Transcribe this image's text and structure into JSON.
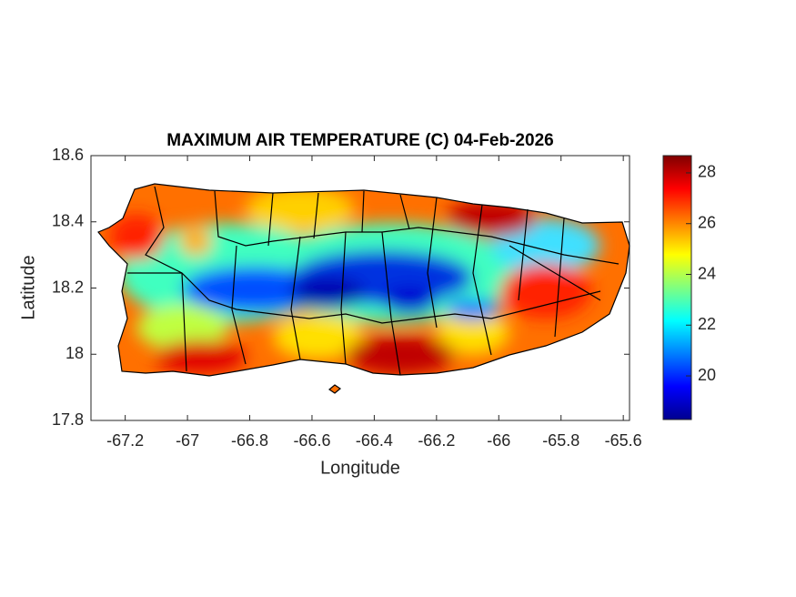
{
  "chart_data": {
    "type": "heatmap",
    "title": "MAXIMUM AIR TEMPERATURE (C) 04-Feb-2026",
    "x_label": "Longitude",
    "y_label": "Latitude",
    "xlim": [
      -67.31,
      -65.58
    ],
    "xticks": [
      -67.2,
      -67,
      -66.8,
      -66.6,
      -66.4,
      -66.2,
      -66,
      -65.8,
      -65.6
    ],
    "ylim": [
      17.8,
      18.6
    ],
    "yticks": [
      17.8,
      18,
      18.2,
      18.4,
      18.6
    ],
    "colorbar": {
      "lim": [
        18.28,
        28.68
      ],
      "ticks": [
        20,
        22,
        24,
        26,
        28
      ]
    }
  }
}
